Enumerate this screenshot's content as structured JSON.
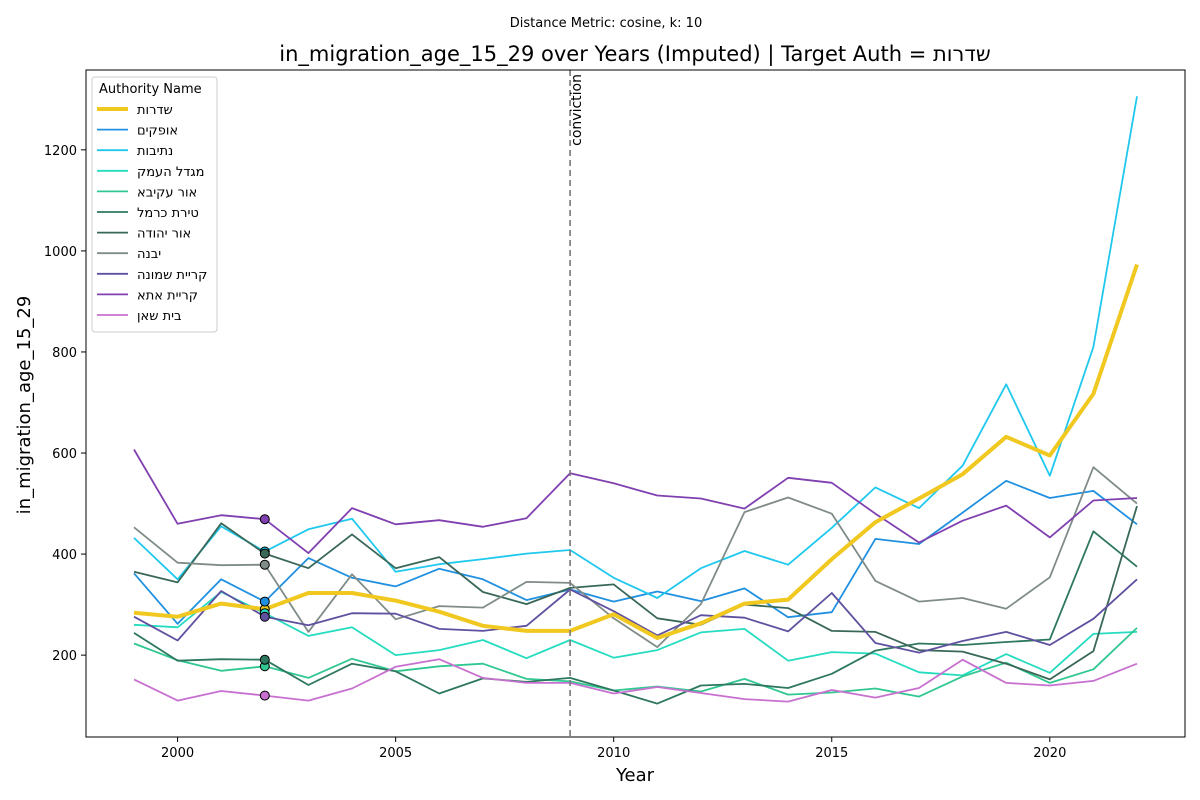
{
  "suptitle": "Distance Metric: cosine, k: 10",
  "chart_data": {
    "type": "line",
    "title": "in_migration_age_15_29 over Years (Imputed) | Target Auth = שדרות",
    "xlabel": "Year",
    "ylabel": "in_migration_age_15_29",
    "xlim": [
      1997.9,
      2023.1
    ],
    "ylim": [
      38,
      1358
    ],
    "xticks": [
      2000,
      2005,
      2010,
      2015,
      2020
    ],
    "yticks": [
      200,
      400,
      600,
      800,
      1000,
      1200
    ],
    "x": [
      1999,
      2000,
      2001,
      2002,
      2003,
      2004,
      2005,
      2006,
      2007,
      2008,
      2009,
      2010,
      2011,
      2012,
      2013,
      2014,
      2015,
      2016,
      2017,
      2018,
      2019,
      2020,
      2021,
      2022
    ],
    "grid": false,
    "legend_title": "Authority Name",
    "legend_position": "upper-left",
    "vline": {
      "x": 2009,
      "label": "conviction"
    },
    "marker_x": 2002,
    "series": [
      {
        "name": "שדרות",
        "color": "#f0c820",
        "width": 4,
        "values": [
          284,
          276,
          302,
          291,
          323,
          323,
          308,
          286,
          258,
          248,
          248,
          281,
          234,
          263,
          302,
          310,
          390,
          463,
          510,
          558,
          632,
          595,
          717,
          973
        ]
      },
      {
        "name": "אופקים",
        "color": "#2090e0",
        "width": 1.8,
        "values": [
          362,
          262,
          350,
          306,
          392,
          353,
          336,
          371,
          350,
          309,
          330,
          306,
          326,
          307,
          332,
          275,
          285,
          430,
          420,
          482,
          545,
          511,
          525,
          459
        ]
      },
      {
        "name": "נתיבות",
        "color": "#20c8ee",
        "width": 1.8,
        "values": [
          432,
          350,
          455,
          405,
          449,
          470,
          365,
          380,
          390,
          401,
          408,
          353,
          313,
          372,
          406,
          379,
          452,
          532,
          491,
          575,
          736,
          555,
          810,
          1306
        ]
      },
      {
        "name": "מגדל העמק",
        "color": "#25dcc0",
        "width": 1.8,
        "values": [
          260,
          255,
          325,
          283,
          238,
          255,
          200,
          210,
          230,
          194,
          230,
          195,
          210,
          245,
          252,
          189,
          206,
          203,
          166,
          160,
          202,
          165,
          242,
          246
        ]
      },
      {
        "name": "אור עקיבא",
        "color": "#30c890",
        "width": 1.8,
        "values": [
          223,
          190,
          169,
          178,
          155,
          193,
          168,
          178,
          183,
          153,
          148,
          130,
          138,
          128,
          153,
          122,
          126,
          134,
          118,
          158,
          185,
          145,
          172,
          254
        ]
      },
      {
        "name": "טירת כרמל",
        "color": "#2e7860",
        "width": 1.8,
        "values": [
          244,
          189,
          192,
          191,
          141,
          183,
          168,
          124,
          154,
          147,
          155,
          130,
          104,
          140,
          143,
          135,
          163,
          209,
          223,
          220,
          226,
          231,
          445,
          375
        ]
      },
      {
        "name": "אור יהודה",
        "color": "#3a6858",
        "width": 1.8,
        "values": [
          365,
          344,
          461,
          401,
          372,
          439,
          372,
          394,
          325,
          301,
          333,
          340,
          273,
          260,
          300,
          293,
          248,
          246,
          210,
          207,
          183,
          152,
          208,
          495
        ]
      },
      {
        "name": "יבנה",
        "color": "#808c88",
        "width": 1.8,
        "values": [
          453,
          383,
          378,
          379,
          246,
          360,
          271,
          297,
          294,
          345,
          343,
          273,
          216,
          301,
          483,
          512,
          480,
          347,
          306,
          313,
          292,
          354,
          572,
          500
        ]
      },
      {
        "name": "קריית שמונה",
        "color": "#6050a0",
        "width": 1.8,
        "values": [
          276,
          229,
          327,
          276,
          259,
          283,
          282,
          252,
          248,
          258,
          330,
          287,
          239,
          279,
          274,
          247,
          323,
          224,
          205,
          228,
          246,
          220,
          272,
          350
        ]
      },
      {
        "name": "קריית אתא",
        "color": "#8040b0",
        "width": 1.8,
        "values": [
          607,
          460,
          477,
          469,
          402,
          491,
          459,
          467,
          454,
          471,
          560,
          540,
          516,
          510,
          490,
          551,
          541,
          480,
          423,
          466,
          496,
          433,
          506,
          511
        ]
      },
      {
        "name": "בית שאן",
        "color": "#c870d0",
        "width": 1.8,
        "values": [
          152,
          110,
          129,
          120,
          110,
          134,
          177,
          192,
          155,
          145,
          145,
          124,
          137,
          125,
          113,
          108,
          131,
          116,
          135,
          191,
          145,
          140,
          149,
          183
        ]
      }
    ]
  }
}
